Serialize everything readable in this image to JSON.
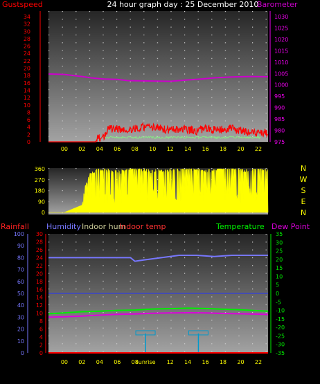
{
  "title": "24 hour graph day : 25 December 2010",
  "colors": {
    "gust": "#ff0000",
    "baro": "#cc00cc",
    "humidity": "#7777ff",
    "indoor_hum": "#cccc99",
    "indoor_temp": "#ff3333",
    "temperature": "#00ee00",
    "dewpoint": "#dd00dd",
    "wind_dir": "#ffff00",
    "zero_line": "#2233ff",
    "sun": "#0099cc",
    "grid_dot": "#cfcfcf"
  },
  "x_ticks": [
    "00",
    "02",
    "04",
    "06",
    "08",
    "10",
    "12",
    "14",
    "16",
    "18",
    "20",
    "22"
  ],
  "top_panel": {
    "left_label": "Gustspeed",
    "right_label": "Barometer",
    "left_ticks": [
      "0",
      "2",
      "4",
      "6",
      "8",
      "10",
      "12",
      "14",
      "16",
      "18",
      "20",
      "22",
      "24",
      "26",
      "28",
      "30",
      "32",
      "34"
    ],
    "right_ticks": [
      "975",
      "980",
      "985",
      "990",
      "995",
      "1000",
      "1005",
      "1010",
      "1015",
      "1020",
      "1025",
      "1030"
    ]
  },
  "mid_panel": {
    "left_ticks": [
      "0",
      "90",
      "180",
      "270",
      "360"
    ],
    "compass": [
      "N",
      "W",
      "S",
      "E",
      "N"
    ]
  },
  "bottom_panel": {
    "rainfall_label": "Rainfall",
    "humidity_label": "Humidity",
    "indoor_hum_label": "Indoor hum",
    "indoor_temp_label": "Indoor temp",
    "temperature_label": "Temperature",
    "dewpoint_label": "Dew Point",
    "humidity_ticks": [
      "0",
      "10",
      "20",
      "30",
      "40",
      "50",
      "60",
      "70",
      "80",
      "90",
      "100"
    ],
    "rain_ticks": [
      "0",
      "2",
      "4",
      "6",
      "8",
      "10",
      "12",
      "14",
      "16",
      "18",
      "20",
      "22",
      "24",
      "26",
      "28",
      "30"
    ],
    "temp_ticks": [
      "35",
      "30",
      "25",
      "20",
      "15",
      "10",
      "5",
      "0",
      "-5",
      "-10",
      "-15",
      "-20",
      "-25",
      "-30",
      "-35"
    ],
    "sunrise_label": "sunrise"
  },
  "chart_data": [
    {
      "type": "line",
      "x_unit": "hour",
      "series": [
        {
          "name": "Gustspeed",
          "axis": "left",
          "points": [
            [
              -1.8,
              0
            ],
            [
              3.5,
              0
            ],
            [
              4.0,
              1.2
            ],
            [
              4.6,
              1.8
            ],
            [
              5.0,
              3.6
            ],
            [
              6.0,
              3.5
            ],
            [
              7.0,
              3.2
            ],
            [
              8.0,
              3.7
            ],
            [
              9.0,
              4.1
            ],
            [
              10.0,
              3.9
            ],
            [
              11.0,
              3.6
            ],
            [
              12.0,
              3.1
            ],
            [
              13.0,
              3.4
            ],
            [
              14.0,
              3.3
            ],
            [
              15.0,
              3.0
            ],
            [
              16.0,
              3.7
            ],
            [
              17.0,
              3.2
            ],
            [
              18.0,
              3.3
            ],
            [
              19.0,
              3.6
            ],
            [
              20.0,
              3.0
            ],
            [
              21.0,
              2.8
            ],
            [
              22.0,
              2.6
            ],
            [
              23.1,
              2.5
            ]
          ]
        },
        {
          "name": "Barometer",
          "axis": "right",
          "points": [
            [
              -1.8,
              1004.8
            ],
            [
              0,
              1004.6
            ],
            [
              2,
              1003.7
            ],
            [
              3,
              1003.1
            ],
            [
              4.5,
              1002.6
            ],
            [
              6,
              1002.4
            ],
            [
              7.2,
              1001.9
            ],
            [
              10,
              1001.7
            ],
            [
              12,
              1001.6
            ],
            [
              13,
              1001.9
            ],
            [
              14,
              1002.2
            ],
            [
              15.5,
              1002.6
            ],
            [
              17,
              1003.1
            ],
            [
              19,
              1003.5
            ],
            [
              21,
              1003.7
            ],
            [
              23.1,
              1003.6
            ]
          ]
        }
      ],
      "ylim_left": [
        0,
        34
      ],
      "ylim_right": [
        975,
        1030
      ]
    },
    {
      "type": "scatter",
      "x_unit": "hour",
      "series": [
        {
          "name": "Wind direction",
          "points": [
            [
              -1.8,
              0
            ],
            [
              0,
              0
            ],
            [
              2,
              60
            ],
            [
              2.4,
              200
            ],
            [
              3,
              300
            ],
            [
              4,
              330
            ],
            [
              6,
              310
            ],
            [
              8,
              340
            ],
            [
              10,
              320
            ],
            [
              12,
              330
            ],
            [
              14,
              340
            ],
            [
              16,
              320
            ],
            [
              18,
              350
            ],
            [
              20,
              330
            ],
            [
              22,
              340
            ],
            [
              23.1,
              330
            ]
          ]
        }
      ],
      "ylim": [
        0,
        360
      ]
    },
    {
      "type": "line",
      "x_unit": "hour",
      "series": [
        {
          "name": "Humidity",
          "axis": "humidity",
          "points": [
            [
              -1.8,
              80
            ],
            [
              7.5,
              80
            ],
            [
              8.0,
              77
            ],
            [
              9.0,
              78
            ],
            [
              11,
              80
            ],
            [
              13,
              82
            ],
            [
              15,
              82
            ],
            [
              17,
              81
            ],
            [
              19,
              82
            ],
            [
              21,
              82
            ],
            [
              23.1,
              82
            ]
          ]
        },
        {
          "name": "Temperature",
          "axis": "temperature",
          "points": [
            [
              -1.8,
              -12
            ],
            [
              0,
              -11.5
            ],
            [
              2,
              -10.8
            ],
            [
              4,
              -10.5
            ],
            [
              6,
              -10.0
            ],
            [
              8,
              -9.8
            ],
            [
              10,
              -9.2
            ],
            [
              12,
              -9.0
            ],
            [
              14,
              -8.7
            ],
            [
              16,
              -8.9
            ],
            [
              18,
              -9.3
            ],
            [
              20,
              -9.7
            ],
            [
              22,
              -10.2
            ],
            [
              23.1,
              -10.5
            ]
          ]
        },
        {
          "name": "Dew Point",
          "axis": "temperature",
          "points": [
            [
              -1.8,
              -14
            ],
            [
              0,
              -13.8
            ],
            [
              2,
              -13.3
            ],
            [
              4,
              -12.8
            ],
            [
              6,
              -12.3
            ],
            [
              8,
              -12.1
            ],
            [
              10,
              -11.7
            ],
            [
              12,
              -11.5
            ],
            [
              14,
              -11.4
            ],
            [
              16,
              -11.5
            ],
            [
              18,
              -11.8
            ],
            [
              20,
              -12.0
            ],
            [
              22,
              -12.2
            ],
            [
              23.1,
              -12.4
            ]
          ]
        },
        {
          "name": "Rainfall",
          "axis": "rainfall",
          "points": [
            [
              -1.8,
              0
            ],
            [
              23.1,
              0
            ]
          ]
        }
      ],
      "sunrise_hour": 9.2,
      "sunset_hour": 15.2,
      "ylim_humidity": [
        0,
        100
      ],
      "ylim_rainfall": [
        0,
        30
      ],
      "ylim_temperature": [
        -35,
        35
      ]
    }
  ]
}
